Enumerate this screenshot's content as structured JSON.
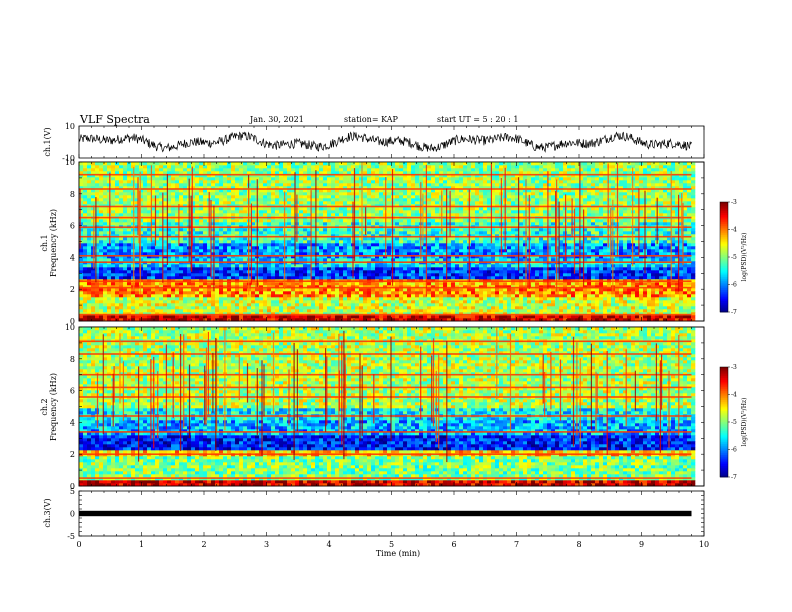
{
  "header": {
    "title": "VLF Spectra",
    "date": "Jan. 30, 2021",
    "station": "station= KAP",
    "start": "start  UT =   5 : 20 : 1"
  },
  "chart_data": [
    {
      "type": "line",
      "id": "ch1-waveform",
      "ylabel": "ch.1(V)",
      "ylim": [
        -10,
        10
      ],
      "yticks": [
        10,
        -10
      ],
      "xlim": [
        0,
        10
      ],
      "series": [
        {
          "x_range": [
            0,
            9.8
          ],
          "amplitude_range": [
            -6,
            6
          ],
          "color": "#000000"
        }
      ]
    },
    {
      "type": "heatmap",
      "id": "ch1-spectrogram",
      "ylabel": "ch.1\nFrequency (kHz)",
      "ylim": [
        0,
        10
      ],
      "yticks": [
        0,
        2,
        4,
        6,
        8,
        10
      ],
      "xlim": [
        0,
        10
      ],
      "data_extent_x": [
        0,
        9.8
      ],
      "colorbar": {
        "label": "log(PSD)(V²/Hz)",
        "range": [
          -7,
          -3
        ],
        "ticks": [
          -3,
          -4,
          -5,
          -6,
          -7
        ]
      },
      "bands_kHz": [
        {
          "f0": 0.0,
          "f1": 0.3,
          "level": -3.3
        },
        {
          "f0": 0.3,
          "f1": 1.6,
          "level": -4.7
        },
        {
          "f0": 1.6,
          "f1": 2.6,
          "level": -4.1
        },
        {
          "f0": 2.6,
          "f1": 3.4,
          "level": -6.3
        },
        {
          "f0": 3.4,
          "f1": 3.9,
          "level": -5.6
        },
        {
          "f0": 3.9,
          "f1": 5.0,
          "level": -5.9
        },
        {
          "f0": 5.0,
          "f1": 6.3,
          "level": -5.3
        },
        {
          "f0": 6.3,
          "f1": 10.0,
          "level": -4.9
        }
      ],
      "lines_kHz": [
        0.4,
        2.1,
        2.5,
        3.7,
        4.1,
        5.3,
        5.9,
        6.5,
        7.2,
        8.3,
        9.2
      ]
    },
    {
      "type": "heatmap",
      "id": "ch2-spectrogram",
      "ylabel": "ch.2\nFrequency (kHz)",
      "ylim": [
        0,
        10
      ],
      "yticks": [
        0,
        2,
        4,
        6,
        8,
        10
      ],
      "xlim": [
        0,
        10
      ],
      "data_extent_x": [
        0,
        9.8
      ],
      "colorbar": {
        "label": "log(PSD)(V²/Hz)",
        "range": [
          -7,
          -3
        ],
        "ticks": [
          -3,
          -4,
          -5,
          -6,
          -7
        ]
      },
      "bands_kHz": [
        {
          "f0": 0.0,
          "f1": 0.4,
          "level": -3.3
        },
        {
          "f0": 0.4,
          "f1": 1.9,
          "level": -5.0
        },
        {
          "f0": 1.9,
          "f1": 2.3,
          "level": -4.3
        },
        {
          "f0": 2.3,
          "f1": 3.3,
          "level": -6.4
        },
        {
          "f0": 3.3,
          "f1": 4.2,
          "level": -5.8
        },
        {
          "f0": 4.2,
          "f1": 5.0,
          "level": -5.5
        },
        {
          "f0": 5.0,
          "f1": 10.0,
          "level": -4.8
        }
      ],
      "lines_kHz": [
        0.5,
        2.0,
        3.4,
        4.4,
        5.6,
        6.2,
        7.0,
        8.3,
        9.1
      ]
    },
    {
      "type": "line",
      "id": "ch3-waveform",
      "ylabel": "ch.3(V)",
      "ylim": [
        -5,
        5
      ],
      "yticks": [
        5,
        0,
        -5
      ],
      "xlim": [
        0,
        10
      ],
      "xlabel": "Time  (min)",
      "xticks": [
        0,
        1,
        2,
        3,
        4,
        5,
        6,
        7,
        8,
        9,
        10
      ],
      "series": [
        {
          "x_range": [
            0,
            9.8
          ],
          "y_center": 0,
          "band_halfwidth": 0.6,
          "color": "#000000"
        }
      ]
    }
  ]
}
